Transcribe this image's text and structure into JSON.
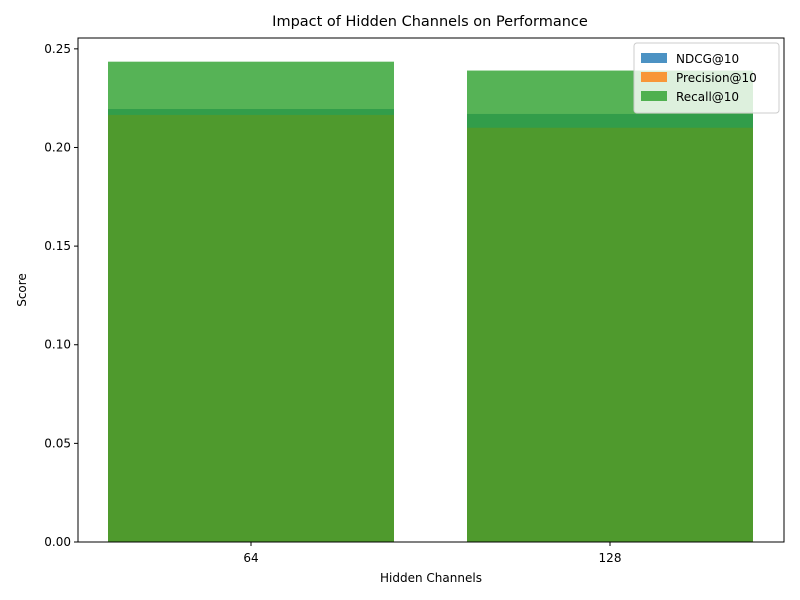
{
  "chart_data": {
    "type": "bar",
    "title": "Impact of Hidden Channels on Performance",
    "xlabel": "Hidden Channels",
    "ylabel": "Score",
    "categories": [
      "64",
      "128"
    ],
    "series": [
      {
        "name": "NDCG@10",
        "values": [
          0.2195,
          0.217
        ],
        "color": "#1f77b4"
      },
      {
        "name": "Precision@10",
        "values": [
          0.2165,
          0.21
        ],
        "color": "#ff7f0e"
      },
      {
        "name": "Recall@10",
        "values": [
          0.2435,
          0.239
        ],
        "color": "#2ca02c"
      }
    ],
    "bar_opacity": 0.8,
    "overlapping_bars": true,
    "ylim": [
      0,
      0.2555
    ],
    "yticks": [
      "0.00",
      "0.05",
      "0.10",
      "0.15",
      "0.20",
      "0.25"
    ],
    "grid": false,
    "legend_position": "top-right"
  }
}
